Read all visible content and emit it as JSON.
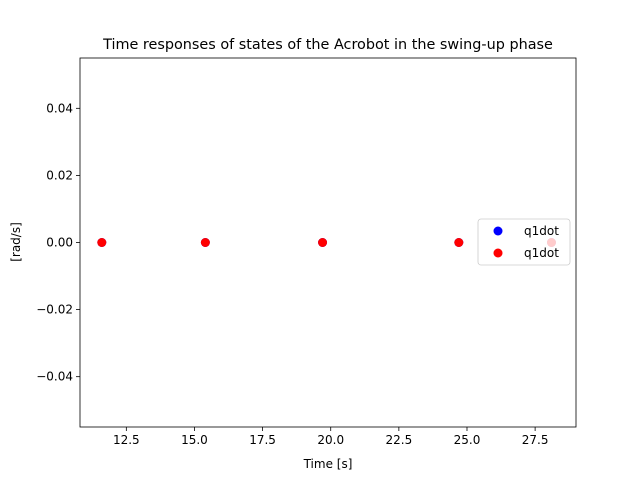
{
  "chart_data": {
    "type": "scatter",
    "title": "Time responses of states of the Acrobot in the swing-up phase",
    "xlabel": "Time [s]",
    "ylabel": "[rad/s]",
    "xlim": [
      10.8,
      29.0
    ],
    "ylim": [
      -0.055,
      0.055
    ],
    "xticks": [
      12.5,
      15.0,
      17.5,
      20.0,
      22.5,
      25.0,
      27.5
    ],
    "xtick_labels": [
      "12.5",
      "15.0",
      "17.5",
      "20.0",
      "22.5",
      "25.0",
      "27.5"
    ],
    "yticks": [
      -0.04,
      -0.02,
      0.0,
      0.02,
      0.04
    ],
    "ytick_labels": [
      "−0.04",
      "−0.02",
      "0.00",
      "0.02",
      "0.04"
    ],
    "grid": false,
    "legend_position": "center-right",
    "series": [
      {
        "name": "q1dot",
        "color": "#0000ff",
        "x": [
          11.6,
          15.4,
          19.7,
          24.7,
          28.1
        ],
        "y": [
          0,
          0,
          0,
          0,
          0
        ]
      },
      {
        "name": "q1dot",
        "color": "#ff0000",
        "x": [
          11.6,
          15.4,
          19.7,
          24.7,
          28.1
        ],
        "y": [
          0,
          0,
          0,
          0,
          0
        ]
      }
    ]
  }
}
